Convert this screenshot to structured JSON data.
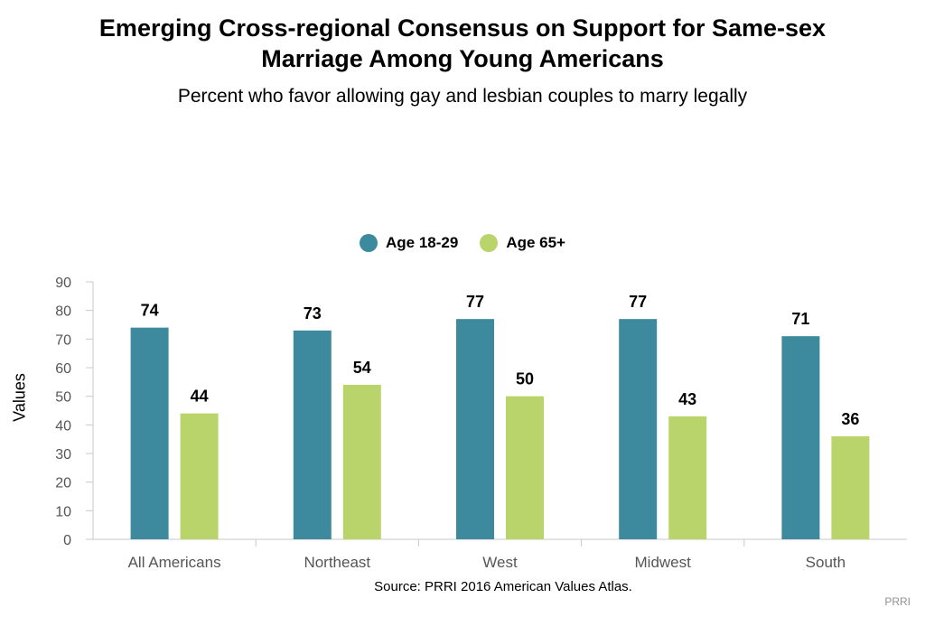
{
  "title": "Emerging Cross-regional Consensus on Support for Same-sex Marriage Among Young Americans",
  "subtitle": "Percent who favor allowing gay and lesbian couples to marry legally",
  "source": "Source: PRRI 2016 American Values Atlas.",
  "credit": "PRRI",
  "colors": {
    "series_1": "#3D8A9E",
    "series_2": "#BAD46C"
  },
  "chart_data": {
    "type": "bar",
    "title": "Emerging Cross-regional Consensus on Support for Same-sex Marriage Among Young Americans",
    "subtitle": "Percent who favor allowing gay and lesbian couples to marry legally",
    "xlabel": "",
    "ylabel": "Values",
    "ylim": [
      0,
      90
    ],
    "yticks": [
      0,
      10,
      20,
      30,
      40,
      50,
      60,
      70,
      80,
      90
    ],
    "categories": [
      "All Americans",
      "Northeast",
      "West",
      "Midwest",
      "South"
    ],
    "series": [
      {
        "name": "Age 18-29",
        "values": [
          74,
          73,
          77,
          77,
          71
        ]
      },
      {
        "name": "Age 65+",
        "values": [
          44,
          54,
          50,
          43,
          36
        ]
      }
    ],
    "legend": "top-center",
    "grid": false
  }
}
